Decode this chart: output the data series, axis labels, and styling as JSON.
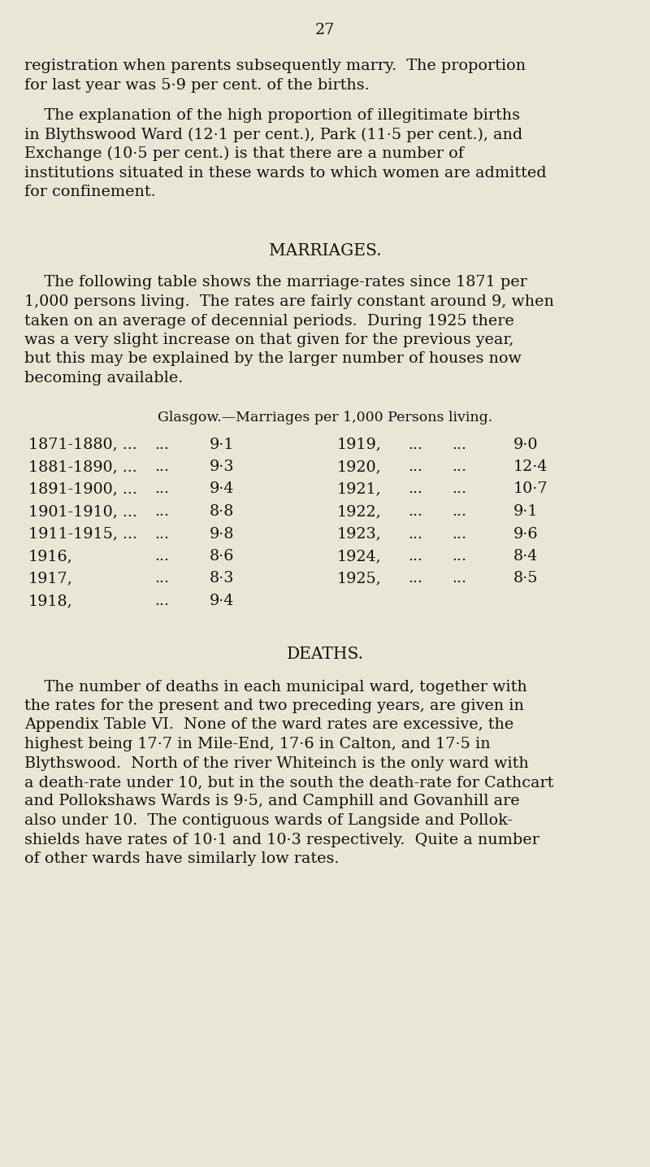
{
  "background_color": "#eae6d5",
  "text_color": "#111111",
  "page_number": "27",
  "font_size_body": 13.8,
  "font_size_heading": 14.5,
  "font_size_table_sub": 12.5,
  "paragraph1_lines": [
    "registration when parents subsequently marry.  The proportion",
    "for last year was 5·9 per cent. of the births."
  ],
  "paragraph2_lines": [
    "    The explanation of the high proportion of illegitimate births",
    "in Blythswood Ward (12·1 per cent.), Park (11·5 per cent.), and",
    "Exchange (10·5 per cent.) is that there are a number of",
    "institutions situated in these wards to which women are admitted",
    "for confinement."
  ],
  "marriages_heading": "MARRIAGES.",
  "marriages_para_lines": [
    "    The following table shows the marriage-rates since 1871 per",
    "1,000 persons living.  The rates are fairly constant around 9, when",
    "taken on an average of decennial periods.  During 1925 there",
    "was a very slight increase on that given for the previous year,",
    "but this may be explained by the larger number of houses now",
    "becoming available."
  ],
  "table_heading": "Glasgow.—Marriages per 1,000 Persons living.",
  "table_left_period": [
    "1871-1880, ...",
    "1881-1890, ...",
    "1891-1900, ...",
    "1901-1910, ...",
    "1911-1915, ...",
    "1916,",
    "1917,",
    "1918,"
  ],
  "table_left_dots": [
    "...",
    "...",
    "...",
    "...",
    "...",
    "...",
    "...",
    "..."
  ],
  "table_left_value": [
    "9·1",
    "9·3",
    "9·4",
    "8·8",
    "9·8",
    "8·6",
    "8·3",
    "9·4"
  ],
  "table_right_period": [
    "1919,",
    "1920,",
    "1921,",
    "1922,",
    "1923,",
    "1924,",
    "1925,"
  ],
  "table_right_dots1": [
    "...",
    "...",
    "...",
    "...",
    "...",
    "...",
    "..."
  ],
  "table_right_dots2": [
    "...",
    "...",
    "...",
    "...",
    "...",
    "...",
    "..."
  ],
  "table_right_value": [
    "9·0",
    "12·4",
    "10·7",
    "9·1",
    "9·6",
    "8·4",
    "8·5"
  ],
  "deaths_heading": "DEATHS.",
  "deaths_para_lines": [
    "    The number of deaths in each municipal ward, together with",
    "the rates for the present and two preceding years, are given in",
    "Appendix Table VI.  None of the ward rates are excessive, the",
    "highest being 17·7 in Mile-End, 17·6 in Calton, and 17·5 in",
    "Blythswood.  North of the river Whiteinch is the only ward with",
    "a death-rate under 10, but in the south the death-rate for Cathcart",
    "and Pollokshaws Wards is 9·5, and Camphill and Govanhill are",
    "also under 10.  The contiguous wards of Langside and Pollok-",
    "shields have rates of 10·1 and 10·3 respectively.  Quite a number",
    "of other wards have similarly low rates."
  ]
}
